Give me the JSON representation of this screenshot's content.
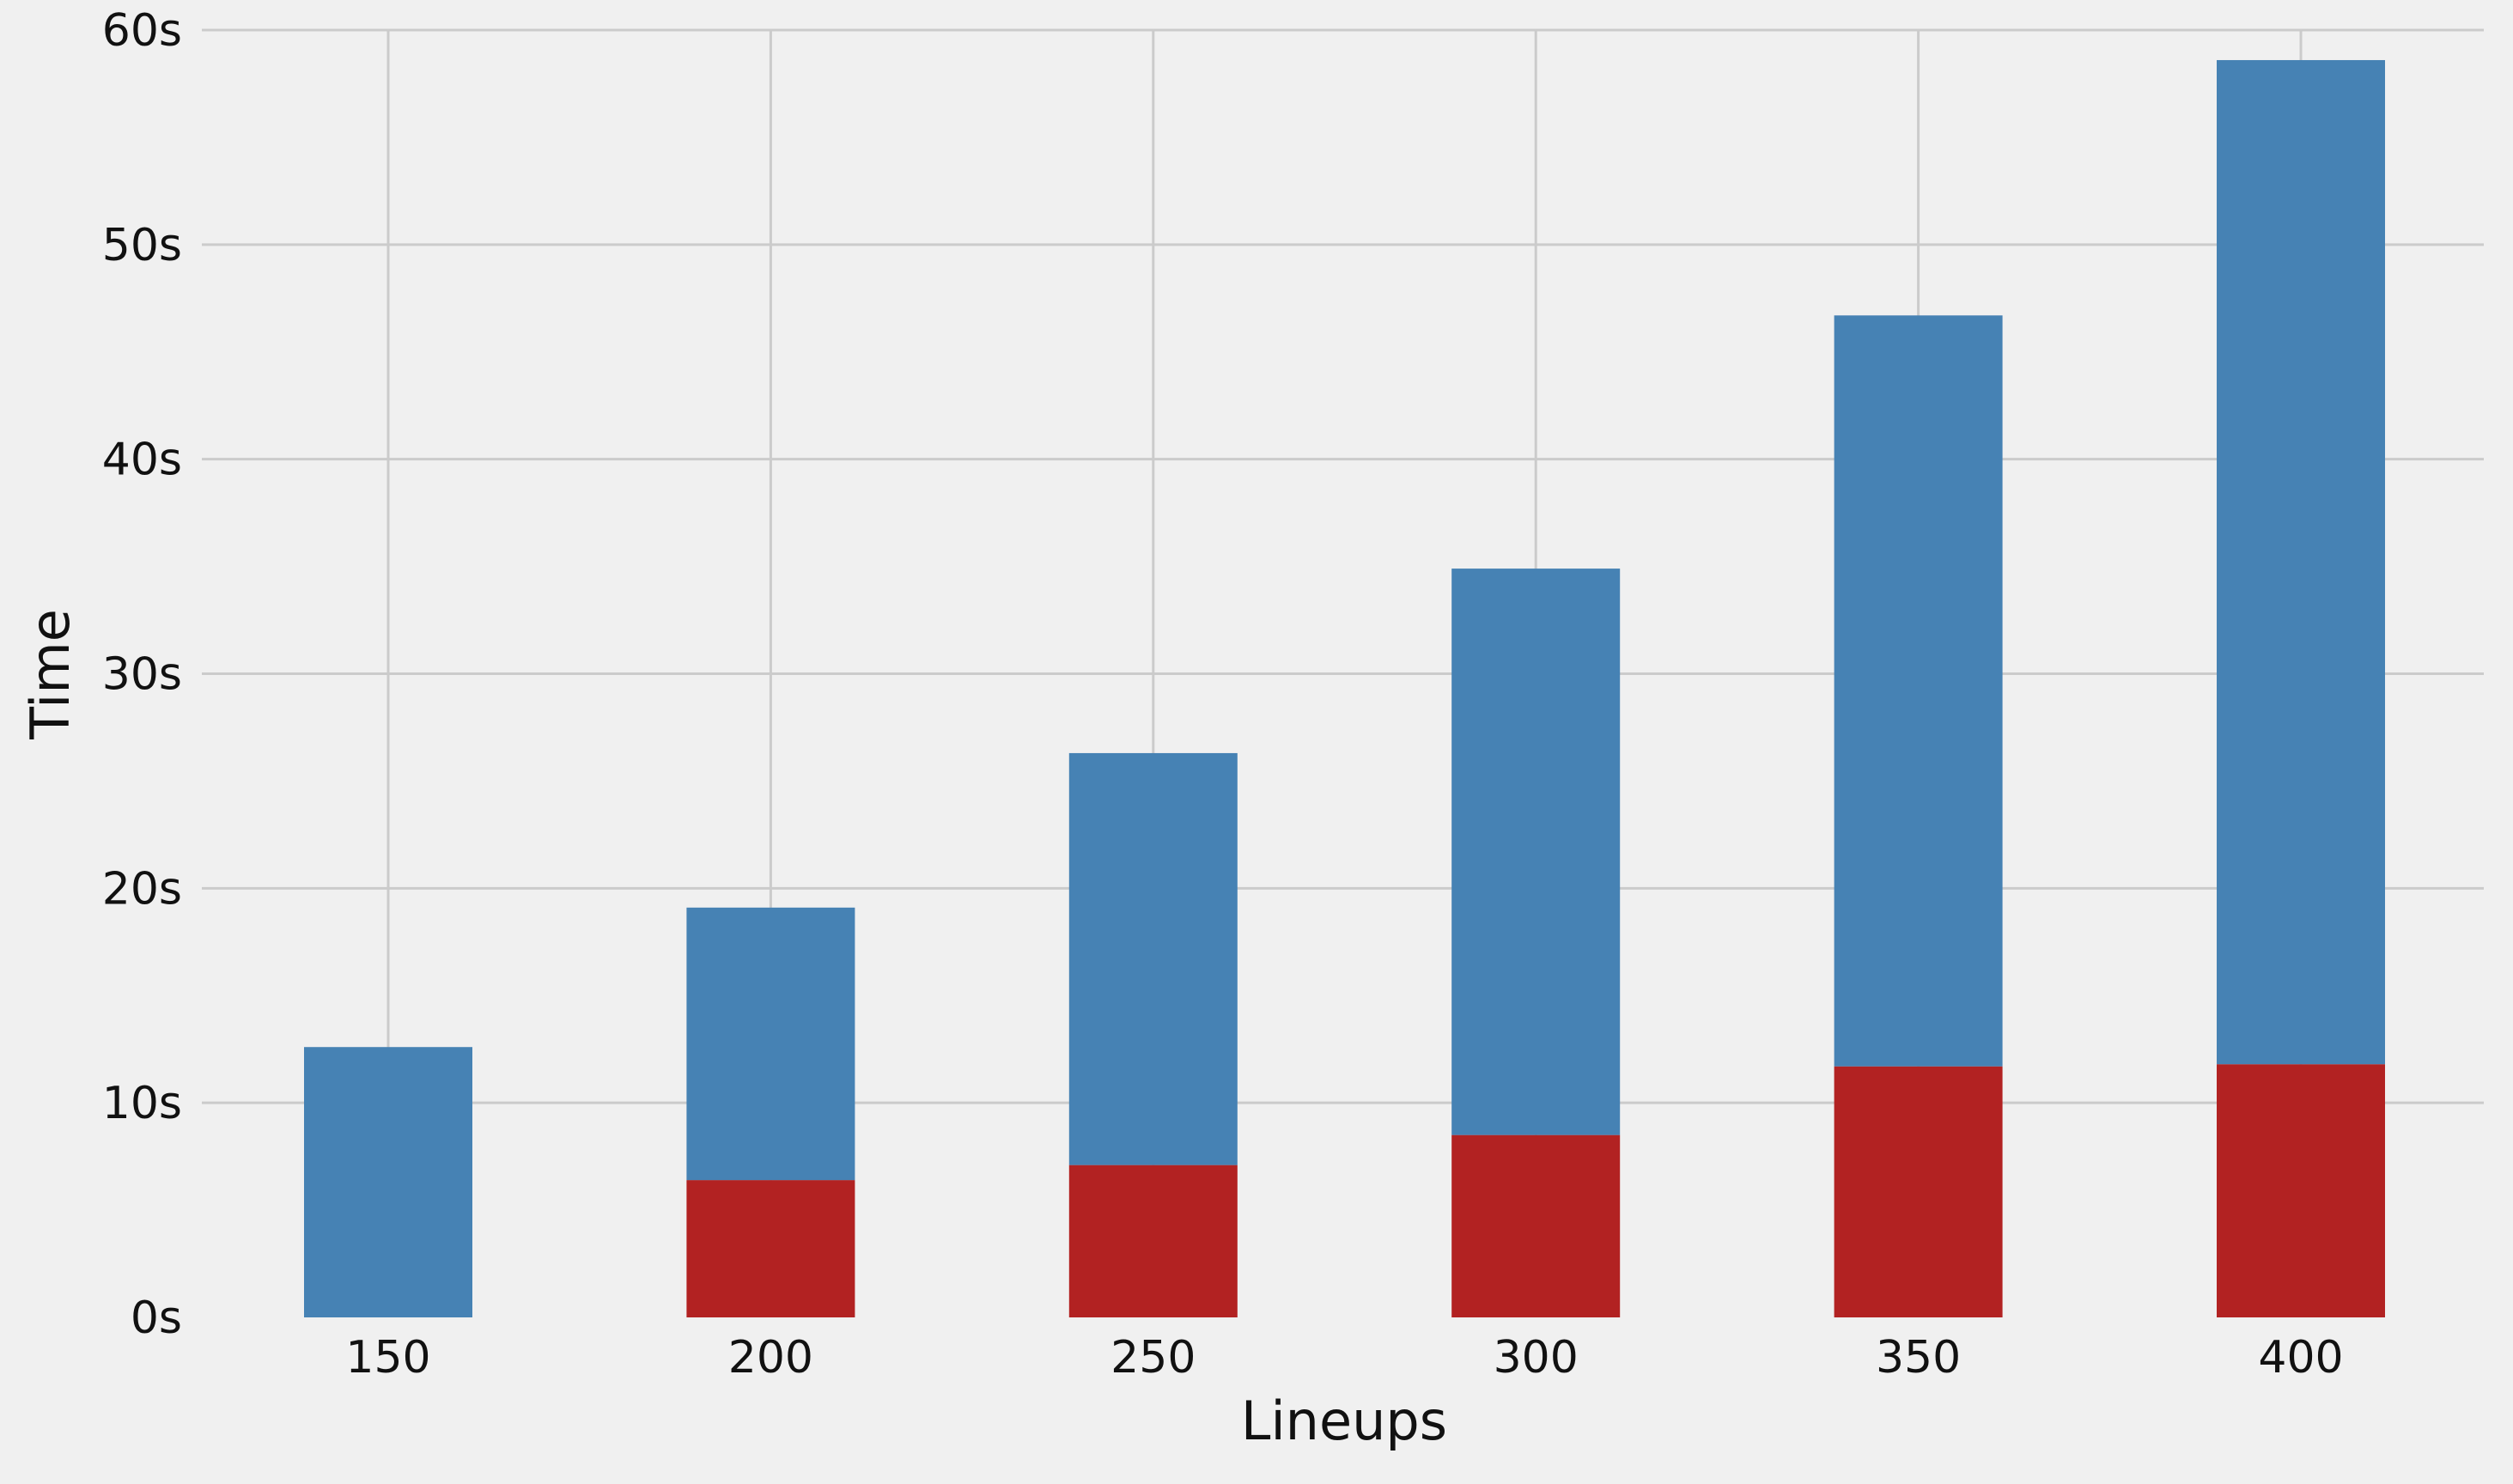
{
  "chart_data": {
    "type": "bar",
    "stacked": true,
    "title": "",
    "xlabel": "Lineups",
    "ylabel": "Time",
    "categories": [
      "150",
      "200",
      "250",
      "300",
      "350",
      "400"
    ],
    "series": [
      {
        "values": [
          0,
          6.4,
          7.1,
          8.5,
          11.7,
          11.8
        ],
        "color": "#b22222"
      },
      {
        "values": [
          12.6,
          12.7,
          19.2,
          26.4,
          35.0,
          46.8
        ],
        "color": "#4682b4"
      }
    ],
    "ylim": [
      0,
      60
    ],
    "yticks": [
      0,
      10,
      20,
      30,
      40,
      50,
      60
    ],
    "ytick_labels": [
      "0s",
      "10s",
      "20s",
      "30s",
      "40s",
      "50s",
      "60s"
    ],
    "grid": true,
    "legend": false,
    "background": "#f0f0f0",
    "grid_color": "#cbcbcb"
  }
}
